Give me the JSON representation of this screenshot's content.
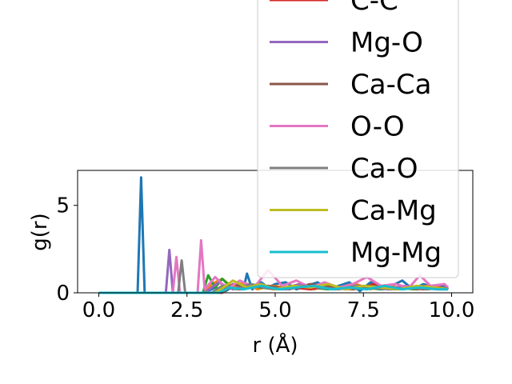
{
  "chart_data": {
    "type": "line",
    "xlabel": "r (Å)",
    "ylabel": "g(r)",
    "xlim": [
      -0.6,
      10.6
    ],
    "ylim": [
      0,
      7.0
    ],
    "xticks": [
      {
        "value": 0.0,
        "label": "0.0"
      },
      {
        "value": 2.5,
        "label": "2.5"
      },
      {
        "value": 5.0,
        "label": "5.0"
      },
      {
        "value": 7.5,
        "label": "7.5"
      },
      {
        "value": 10.0,
        "label": "10.0"
      }
    ],
    "yticks": [
      {
        "value": 0,
        "label": "0"
      },
      {
        "value": 5,
        "label": "5"
      }
    ],
    "legend_position": "upper-right",
    "series": [
      {
        "name": "",
        "color": "#1f77b4",
        "legend": false,
        "x": [
          0.0,
          1.1,
          1.2,
          1.3,
          1.4,
          3.0,
          3.3,
          3.6,
          3.9,
          4.1,
          4.2,
          4.35,
          4.6,
          4.8,
          5.0,
          5.3,
          5.6,
          5.9,
          6.2,
          6.5,
          6.8,
          7.1,
          7.4,
          7.7,
          8.0,
          8.3,
          8.6,
          8.9,
          9.2,
          9.5,
          9.8,
          9.9
        ],
        "y": [
          0,
          0,
          6.6,
          0,
          0,
          0,
          0.3,
          0.1,
          0.5,
          0.2,
          1.1,
          0.2,
          0.6,
          0.3,
          0.5,
          0.6,
          0.2,
          0.4,
          0.6,
          0.2,
          0.4,
          0.6,
          0.1,
          0.6,
          0.3,
          0.4,
          0.7,
          0.2,
          0.5,
          0.3,
          0.4,
          0.2
        ]
      },
      {
        "name": "",
        "color": "#ff7f0e",
        "legend": false,
        "x": [
          0.0,
          3.0,
          3.2,
          3.5,
          3.8,
          4.1,
          4.5,
          4.9,
          5.3,
          5.7,
          6.1,
          6.5,
          6.9,
          7.3,
          7.7,
          8.1,
          8.5,
          8.9,
          9.3,
          9.7,
          9.9
        ],
        "y": [
          0,
          0,
          0.5,
          0.8,
          0.3,
          0.6,
          0.2,
          0.4,
          0.3,
          0.5,
          0.2,
          0.4,
          0.3,
          0.5,
          0.2,
          0.4,
          0.3,
          0.2,
          0.4,
          0.3,
          0.2
        ]
      },
      {
        "name": "",
        "color": "#2ca02c",
        "legend": false,
        "x": [
          0.0,
          2.95,
          3.1,
          3.3,
          3.5,
          3.8,
          4.2,
          4.6,
          5.0,
          5.5,
          6.0,
          6.5,
          7.0,
          7.5,
          8.0,
          8.5,
          9.0,
          9.5,
          9.9
        ],
        "y": [
          0,
          0,
          1.0,
          0.3,
          0.8,
          0.2,
          0.4,
          0.3,
          0.2,
          0.4,
          0.3,
          0.2,
          0.4,
          0.3,
          0.2,
          0.3,
          0.2,
          0.3,
          0.2
        ]
      },
      {
        "name": "C-C",
        "color": "#d62728",
        "x": [
          0.0,
          3.2,
          3.5,
          4.0,
          4.5,
          5.0,
          5.5,
          6.0,
          6.5,
          7.0,
          7.5,
          7.8,
          8.2,
          8.7,
          9.2,
          9.7,
          9.9
        ],
        "y": [
          0,
          0,
          0.3,
          0.2,
          0.4,
          0.2,
          0.3,
          0.2,
          0.4,
          0.2,
          0.3,
          0.5,
          0.2,
          0.3,
          0.2,
          0.3,
          0.2
        ]
      },
      {
        "name": "Mg-O",
        "color": "#9467bd",
        "x": [
          0.0,
          1.9,
          2.0,
          2.1,
          3.0,
          3.4,
          3.8,
          4.2,
          4.7,
          5.2,
          5.7,
          6.2,
          6.7,
          7.2,
          7.7,
          8.2,
          8.7,
          9.2,
          9.7,
          9.9
        ],
        "y": [
          0,
          0,
          2.45,
          0,
          0,
          0.6,
          0.2,
          0.5,
          0.3,
          0.2,
          0.5,
          0.3,
          0.2,
          0.4,
          0.3,
          0.2,
          0.4,
          0.3,
          0.2,
          0.3
        ]
      },
      {
        "name": "Ca-Ca",
        "color": "#8c564b",
        "x": [
          0.0,
          3.5,
          3.8,
          4.2,
          4.8,
          5.4,
          6.0,
          6.6,
          7.2,
          7.8,
          8.4,
          9.0,
          9.6,
          9.9
        ],
        "y": [
          0,
          0,
          0.5,
          0.3,
          0.4,
          0.2,
          0.5,
          0.3,
          0.2,
          0.4,
          0.2,
          0.3,
          0.2,
          0.2
        ]
      },
      {
        "name": "O-O",
        "color": "#e377c2",
        "x": [
          0.0,
          2.1,
          2.2,
          2.3,
          2.8,
          2.9,
          3.0,
          3.3,
          3.5,
          3.7,
          4.0,
          4.4,
          4.8,
          5.2,
          5.6,
          6.0,
          6.4,
          6.8,
          7.2,
          7.6,
          8.0,
          8.4,
          8.8,
          9.1,
          9.4,
          9.8,
          9.9
        ],
        "y": [
          0,
          0,
          2.05,
          0,
          0,
          3.0,
          0.2,
          0.9,
          0.5,
          0.3,
          0.7,
          0.3,
          1.3,
          0.4,
          0.7,
          0.3,
          0.6,
          0.3,
          0.5,
          0.9,
          0.4,
          0.5,
          0.3,
          1.0,
          0.4,
          0.5,
          0.3
        ]
      },
      {
        "name": "Ca-O",
        "color": "#7f7f7f",
        "x": [
          0.0,
          2.25,
          2.35,
          2.45,
          3.2,
          3.5,
          3.9,
          4.3,
          4.8,
          5.3,
          5.8,
          6.3,
          6.8,
          7.3,
          7.8,
          8.3,
          8.8,
          9.3,
          9.8,
          9.9
        ],
        "y": [
          0,
          0,
          1.85,
          0,
          0,
          0.4,
          0.2,
          0.5,
          0.3,
          0.2,
          0.4,
          0.3,
          0.2,
          0.4,
          0.3,
          0.2,
          0.3,
          0.2,
          0.3,
          0.2
        ]
      },
      {
        "name": "Ca-Mg",
        "color": "#bcbd22",
        "x": [
          0.0,
          3.3,
          3.6,
          3.8,
          4.2,
          4.6,
          5.0,
          5.5,
          6.0,
          6.5,
          7.0,
          7.5,
          8.0,
          8.5,
          9.0,
          9.5,
          9.9
        ],
        "y": [
          0,
          0,
          0.4,
          0.7,
          0.3,
          0.5,
          0.2,
          0.4,
          0.3,
          0.5,
          0.2,
          0.4,
          0.3,
          0.2,
          0.4,
          0.3,
          0.2
        ]
      },
      {
        "name": "Mg-Mg",
        "color": "#17becf",
        "x": [
          0.0,
          3.4,
          3.7,
          4.1,
          4.6,
          5.1,
          5.6,
          6.1,
          6.6,
          7.1,
          7.6,
          8.1,
          8.6,
          9.1,
          9.6,
          9.9
        ],
        "y": [
          0,
          0,
          0.3,
          0.2,
          0.4,
          0.2,
          0.3,
          0.4,
          0.2,
          0.3,
          0.2,
          0.4,
          0.2,
          0.3,
          0.2,
          0.2
        ]
      }
    ]
  }
}
